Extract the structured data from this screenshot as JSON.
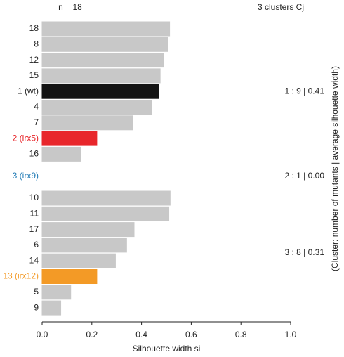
{
  "chart_data": {
    "type": "silhouette",
    "title": "n = 18",
    "subtitle": "3 clusters Cj",
    "x_label": "Silhouette width si",
    "y2_label": "(Cluster: number of mutants | average silhouette width)",
    "xlim": [
      0,
      1
    ],
    "xticks": [
      {
        "value": 0,
        "label": "0.0"
      },
      0.2,
      0.4,
      0.6,
      0.8,
      {
        "value": 1,
        "label": "1.0"
      }
    ],
    "series": [
      {
        "annotation": "1 :  9  |  0.41",
        "categories": [
          "18",
          "8",
          "12",
          "15",
          "1 (wt)",
          "4",
          "7",
          "2 (irx5)",
          "16"
        ],
        "values": [
          0.513,
          0.505,
          0.49,
          0.475,
          0.47,
          0.44,
          0.365,
          0.22,
          0.155
        ],
        "colors": [
          "#c8c8c8",
          "#c8c8c8",
          "#c8c8c8",
          "#c8c8c8",
          "#141414",
          "#c8c8c8",
          "#c8c8c8",
          "#e8262b",
          "#c8c8c8"
        ],
        "label_colors": [
          "#222222",
          "#222222",
          "#222222",
          "#222222",
          "#222222",
          "#222222",
          "#222222",
          "#e8262b",
          "#222222"
        ]
      },
      {
        "annotation": "2 :  1  |  0.00",
        "categories": [
          "3 (irx9)"
        ],
        "values": [
          0
        ],
        "colors": [
          "#1f7ab5"
        ],
        "label_colors": [
          "#1f7ab5"
        ]
      },
      {
        "annotation": "3 :  8  |  0.31",
        "categories": [
          "10",
          "11",
          "17",
          "6",
          "14",
          "13 (irx12)",
          "5",
          "9"
        ],
        "values": [
          0.515,
          0.51,
          0.37,
          0.34,
          0.295,
          0.22,
          0.115,
          0.075
        ],
        "colors": [
          "#c8c8c8",
          "#c8c8c8",
          "#c8c8c8",
          "#c8c8c8",
          "#c8c8c8",
          "#f39a26",
          "#c8c8c8",
          "#c8c8c8"
        ],
        "label_colors": [
          "#222222",
          "#222222",
          "#222222",
          "#222222",
          "#222222",
          "#f39a26",
          "#222222",
          "#222222"
        ]
      }
    ]
  }
}
